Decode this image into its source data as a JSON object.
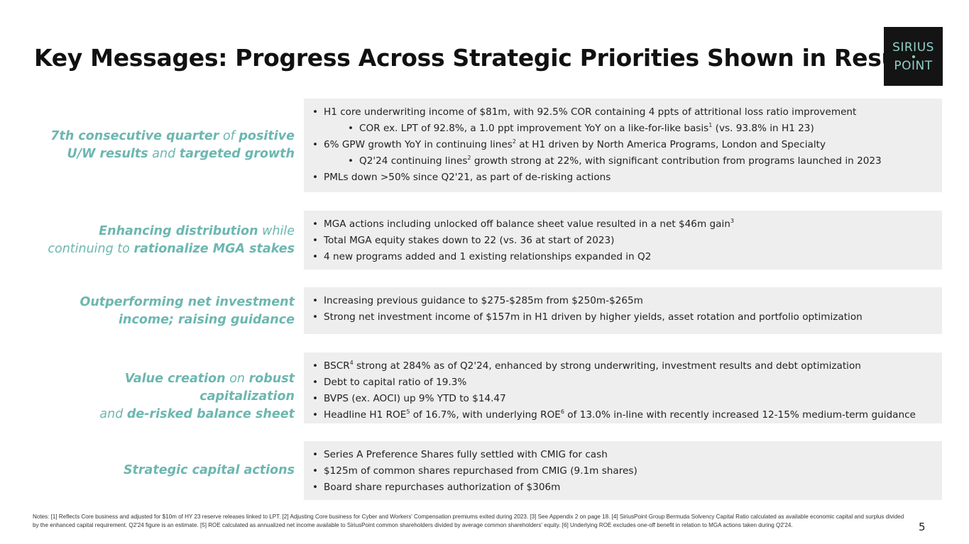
{
  "title": "Key Messages: Progress Across Strategic Priorities Shown in Results",
  "logo": {
    "line1": "SIRIUS",
    "line2": "POINT",
    "icon": "star-dot-icon",
    "bg_color": "#141414",
    "text_color": "#8fd1c9"
  },
  "accent_color": "#6cb7b0",
  "rows": [
    {
      "label": [
        {
          "text": "7th consecutive quarter",
          "bold": true
        },
        {
          "text": " of ",
          "bold": false
        },
        {
          "text": "positive",
          "bold": true
        },
        {
          "br": true
        },
        {
          "text": "U/W results",
          "bold": true
        },
        {
          "text": " and ",
          "bold": false
        },
        {
          "text": "targeted growth",
          "bold": true
        }
      ],
      "bullets": [
        {
          "level": 0,
          "parts": [
            {
              "t": "H1 core underwriting income of $81m, with 92.5% COR containing 4 ppts of attritional loss ratio improvement"
            }
          ]
        },
        {
          "level": 1,
          "parts": [
            {
              "t": "COR ex. LPT of 92.8%, a 1.0 ppt improvement YoY on a like-for-like basis"
            },
            {
              "sup": "1"
            },
            {
              "t": " (vs. 93.8% in H1 23)"
            }
          ]
        },
        {
          "level": 0,
          "parts": [
            {
              "t": "6% GPW growth YoY in continuing lines"
            },
            {
              "sup": "2"
            },
            {
              "t": " at H1 driven by North America Programs, London and Specialty"
            }
          ]
        },
        {
          "level": 1,
          "parts": [
            {
              "t": "Q2'24 continuing lines"
            },
            {
              "sup": "2"
            },
            {
              "t": " growth strong at 22%, with significant contribution from programs launched in 2023"
            }
          ]
        },
        {
          "level": 0,
          "parts": [
            {
              "t": "PMLs down >50% since Q2'21, as part of de-risking actions"
            }
          ]
        }
      ]
    },
    {
      "label": [
        {
          "text": "Enhancing distribution",
          "bold": true
        },
        {
          "text": " while",
          "bold": false
        },
        {
          "br": true
        },
        {
          "text": "continuing to ",
          "bold": false
        },
        {
          "text": "rationalize MGA stakes",
          "bold": true
        }
      ],
      "bullets": [
        {
          "level": 0,
          "parts": [
            {
              "t": "MGA actions including unlocked off balance sheet value resulted in a net $46m gain"
            },
            {
              "sup": "3"
            }
          ]
        },
        {
          "level": 0,
          "parts": [
            {
              "t": "Total MGA equity stakes down to 22 (vs. 36 at start of 2023)"
            }
          ]
        },
        {
          "level": 0,
          "parts": [
            {
              "t": "4 new programs added and 1 existing relationships expanded in Q2"
            }
          ]
        }
      ]
    },
    {
      "label": [
        {
          "text": "Outperforming net investment",
          "bold": true
        },
        {
          "br": true
        },
        {
          "text": "income; raising guidance",
          "bold": true
        }
      ],
      "bullets": [
        {
          "level": 0,
          "parts": [
            {
              "t": "Increasing previous guidance to $275-$285m from $250m-$265m"
            }
          ]
        },
        {
          "level": 0,
          "parts": [
            {
              "t": "Strong net investment income of $157m in H1 driven by higher yields, asset rotation and portfolio optimization"
            }
          ]
        }
      ]
    },
    {
      "label": [
        {
          "text": "Value creation",
          "bold": true
        },
        {
          "text": " on ",
          "bold": false
        },
        {
          "text": "robust capitalization",
          "bold": true
        },
        {
          "br": true
        },
        {
          "text": "and ",
          "bold": false
        },
        {
          "text": "de-risked balance sheet",
          "bold": true
        }
      ],
      "bullets": [
        {
          "level": 0,
          "parts": [
            {
              "t": "BSCR"
            },
            {
              "sup": "4"
            },
            {
              "t": " strong at 284% as of Q2'24, enhanced by strong underwriting, investment results and debt optimization"
            }
          ]
        },
        {
          "level": 0,
          "parts": [
            {
              "t": "Debt to capital ratio of 19.3%"
            }
          ]
        },
        {
          "level": 0,
          "parts": [
            {
              "t": "BVPS (ex. AOCI) up 9% YTD to $14.47"
            }
          ]
        },
        {
          "level": 0,
          "parts": [
            {
              "t": "Headline H1 ROE"
            },
            {
              "sup": "5"
            },
            {
              "t": " of 16.7%, with underlying ROE"
            },
            {
              "sup": "6"
            },
            {
              "t": " of 13.0% in-line with recently increased 12-15% medium-term guidance"
            }
          ]
        }
      ]
    },
    {
      "label": [
        {
          "text": "Strategic capital actions",
          "bold": true
        }
      ],
      "bullets": [
        {
          "level": 0,
          "parts": [
            {
              "t": "Series A Preference Shares fully settled with CMIG for cash"
            }
          ]
        },
        {
          "level": 0,
          "parts": [
            {
              "t": "$125m of common shares repurchased from CMIG (9.1m shares)"
            }
          ]
        },
        {
          "level": 0,
          "parts": [
            {
              "t": "Board share repurchases authorization of $306m"
            }
          ]
        }
      ]
    }
  ],
  "notes": "Notes: [1] Reflects Core business and adjusted for $10m of HY 23 reserve releases linked to LPT. [2] Adjusting Core business for Cyber and Workers' Compensation premiums exited during 2023. [3] See Appendix 2 on page 18. [4] SiriusPoint Group Bermuda Solvency Capital Ratio calculated as available economic capital and surplus divided by the enhanced capital requirement. Q2'24 figure is an estimate. [5] ROE calculated as annualized net income available to SiriusPoint common shareholders divided by average common shareholders' equity. [6] Underlying ROE excludes one-off benefit in relation to MGA actions taken during Q2'24.",
  "page_number": "5"
}
